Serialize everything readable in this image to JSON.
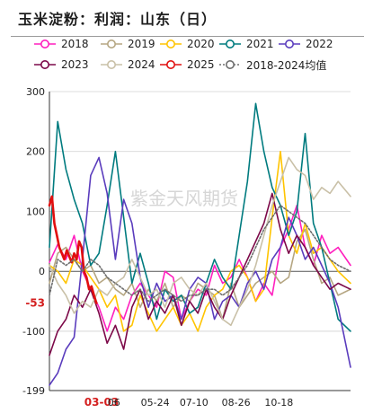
{
  "title": "玉米淀粉：利润：山东（日）",
  "watermark": "紫金天风期货",
  "chart_data": {
    "type": "line",
    "y_ticks": [
      300,
      200,
      100,
      0,
      -100,
      -199
    ],
    "ylim": [
      -199,
      300
    ],
    "x_ticks": [
      "06",
      "05-24",
      "07-10",
      "08-26",
      "10-18"
    ],
    "x_highlight": "03-03",
    "latest_value_label": "-53",
    "latest_value": -53,
    "x_range": [
      0,
      365
    ],
    "grid": true,
    "legend_position": "top",
    "series": [
      {
        "name": "2018",
        "color": "#ff1fbe",
        "marker": "circle",
        "points": [
          [
            0,
            15
          ],
          [
            10,
            45
          ],
          [
            20,
            20
          ],
          [
            30,
            60
          ],
          [
            40,
            0
          ],
          [
            50,
            -30
          ],
          [
            60,
            -60
          ],
          [
            70,
            -100
          ],
          [
            80,
            -60
          ],
          [
            90,
            -80
          ],
          [
            100,
            -40
          ],
          [
            110,
            -20
          ],
          [
            120,
            -40
          ],
          [
            130,
            -60
          ],
          [
            140,
            0
          ],
          [
            150,
            -10
          ],
          [
            160,
            -80
          ],
          [
            170,
            -50
          ],
          [
            180,
            -30
          ],
          [
            190,
            -40
          ],
          [
            200,
            10
          ],
          [
            210,
            -20
          ],
          [
            220,
            -10
          ],
          [
            230,
            20
          ],
          [
            240,
            -10
          ],
          [
            250,
            -50
          ],
          [
            260,
            -20
          ],
          [
            270,
            -40
          ],
          [
            280,
            40
          ],
          [
            290,
            70
          ],
          [
            300,
            110
          ],
          [
            310,
            40
          ],
          [
            320,
            10
          ],
          [
            330,
            60
          ],
          [
            340,
            30
          ],
          [
            350,
            40
          ],
          [
            365,
            10
          ]
        ]
      },
      {
        "name": "2019",
        "color": "#b5a682",
        "marker": "circle",
        "points": [
          [
            0,
            -20
          ],
          [
            10,
            30
          ],
          [
            20,
            40
          ],
          [
            30,
            20
          ],
          [
            40,
            0
          ],
          [
            50,
            10
          ],
          [
            60,
            -20
          ],
          [
            70,
            -10
          ],
          [
            80,
            -30
          ],
          [
            90,
            -40
          ],
          [
            100,
            -20
          ],
          [
            110,
            -60
          ],
          [
            120,
            -30
          ],
          [
            130,
            -50
          ],
          [
            140,
            -20
          ],
          [
            150,
            -60
          ],
          [
            160,
            -40
          ],
          [
            170,
            -50
          ],
          [
            180,
            -20
          ],
          [
            190,
            -30
          ],
          [
            200,
            -40
          ],
          [
            210,
            -80
          ],
          [
            220,
            -20
          ],
          [
            230,
            -60
          ],
          [
            240,
            -40
          ],
          [
            250,
            -20
          ],
          [
            260,
            -10
          ],
          [
            270,
            0
          ],
          [
            280,
            -20
          ],
          [
            290,
            -10
          ],
          [
            300,
            50
          ],
          [
            310,
            70
          ],
          [
            320,
            20
          ],
          [
            330,
            -20
          ],
          [
            340,
            -10
          ],
          [
            350,
            -40
          ],
          [
            365,
            -30
          ]
        ]
      },
      {
        "name": "2020",
        "color": "#ffc400",
        "marker": "circle",
        "points": [
          [
            0,
            10
          ],
          [
            10,
            0
          ],
          [
            20,
            -20
          ],
          [
            30,
            20
          ],
          [
            40,
            10
          ],
          [
            50,
            -10
          ],
          [
            60,
            -30
          ],
          [
            70,
            -60
          ],
          [
            80,
            -40
          ],
          [
            90,
            -100
          ],
          [
            100,
            -90
          ],
          [
            110,
            -40
          ],
          [
            120,
            -70
          ],
          [
            130,
            -100
          ],
          [
            140,
            -80
          ],
          [
            150,
            -60
          ],
          [
            160,
            -90
          ],
          [
            170,
            -70
          ],
          [
            180,
            -100
          ],
          [
            190,
            -60
          ],
          [
            200,
            -40
          ],
          [
            210,
            -30
          ],
          [
            220,
            0
          ],
          [
            230,
            10
          ],
          [
            240,
            -10
          ],
          [
            250,
            -50
          ],
          [
            260,
            -30
          ],
          [
            270,
            90
          ],
          [
            280,
            200
          ],
          [
            290,
            60
          ],
          [
            300,
            30
          ],
          [
            310,
            80
          ],
          [
            320,
            30
          ],
          [
            330,
            40
          ],
          [
            340,
            20
          ],
          [
            350,
            0
          ],
          [
            365,
            -20
          ]
        ]
      },
      {
        "name": "2021",
        "color": "#007b7f",
        "marker": "circle",
        "points": [
          [
            0,
            40
          ],
          [
            10,
            250
          ],
          [
            20,
            170
          ],
          [
            30,
            120
          ],
          [
            40,
            80
          ],
          [
            50,
            10
          ],
          [
            60,
            30
          ],
          [
            70,
            110
          ],
          [
            80,
            200
          ],
          [
            90,
            90
          ],
          [
            100,
            -20
          ],
          [
            110,
            30
          ],
          [
            120,
            -20
          ],
          [
            130,
            -80
          ],
          [
            140,
            -30
          ],
          [
            150,
            -50
          ],
          [
            160,
            -40
          ],
          [
            170,
            -70
          ],
          [
            180,
            -60
          ],
          [
            190,
            -20
          ],
          [
            200,
            20
          ],
          [
            210,
            -10
          ],
          [
            220,
            -30
          ],
          [
            230,
            60
          ],
          [
            240,
            150
          ],
          [
            250,
            280
          ],
          [
            260,
            200
          ],
          [
            270,
            140
          ],
          [
            280,
            110
          ],
          [
            290,
            60
          ],
          [
            300,
            100
          ],
          [
            310,
            230
          ],
          [
            320,
            80
          ],
          [
            330,
            40
          ],
          [
            340,
            -20
          ],
          [
            350,
            -80
          ],
          [
            365,
            -100
          ]
        ]
      },
      {
        "name": "2022",
        "color": "#5a3cbd",
        "marker": "circle",
        "points": [
          [
            0,
            -190
          ],
          [
            10,
            -170
          ],
          [
            20,
            -130
          ],
          [
            30,
            -110
          ],
          [
            40,
            20
          ],
          [
            50,
            160
          ],
          [
            60,
            190
          ],
          [
            70,
            130
          ],
          [
            80,
            20
          ],
          [
            90,
            120
          ],
          [
            100,
            80
          ],
          [
            110,
            -10
          ],
          [
            120,
            -60
          ],
          [
            130,
            -20
          ],
          [
            140,
            -50
          ],
          [
            150,
            -40
          ],
          [
            160,
            -80
          ],
          [
            170,
            -30
          ],
          [
            180,
            -10
          ],
          [
            190,
            -20
          ],
          [
            200,
            -80
          ],
          [
            210,
            -50
          ],
          [
            220,
            -40
          ],
          [
            230,
            -60
          ],
          [
            240,
            -20
          ],
          [
            250,
            0
          ],
          [
            260,
            -30
          ],
          [
            270,
            20
          ],
          [
            280,
            40
          ],
          [
            290,
            90
          ],
          [
            300,
            60
          ],
          [
            310,
            20
          ],
          [
            320,
            40
          ],
          [
            330,
            10
          ],
          [
            340,
            -20
          ],
          [
            350,
            -60
          ],
          [
            365,
            -160
          ]
        ]
      },
      {
        "name": "2023",
        "color": "#7c0848",
        "marker": "circle",
        "points": [
          [
            0,
            -140
          ],
          [
            10,
            -100
          ],
          [
            20,
            -80
          ],
          [
            30,
            -40
          ],
          [
            40,
            -60
          ],
          [
            50,
            -30
          ],
          [
            60,
            -70
          ],
          [
            70,
            -120
          ],
          [
            80,
            -90
          ],
          [
            90,
            -130
          ],
          [
            100,
            -60
          ],
          [
            110,
            -30
          ],
          [
            120,
            -80
          ],
          [
            130,
            -50
          ],
          [
            140,
            -70
          ],
          [
            150,
            -40
          ],
          [
            160,
            -90
          ],
          [
            170,
            -50
          ],
          [
            180,
            -70
          ],
          [
            190,
            -30
          ],
          [
            200,
            -60
          ],
          [
            210,
            -80
          ],
          [
            220,
            -40
          ],
          [
            230,
            -10
          ],
          [
            240,
            20
          ],
          [
            250,
            50
          ],
          [
            260,
            80
          ],
          [
            270,
            130
          ],
          [
            280,
            70
          ],
          [
            290,
            30
          ],
          [
            300,
            60
          ],
          [
            310,
            40
          ],
          [
            320,
            10
          ],
          [
            330,
            -10
          ],
          [
            340,
            -30
          ],
          [
            350,
            -20
          ],
          [
            365,
            -30
          ]
        ]
      },
      {
        "name": "2024",
        "color": "#c9c0a7",
        "marker": "circle",
        "points": [
          [
            0,
            10
          ],
          [
            10,
            -20
          ],
          [
            20,
            -40
          ],
          [
            30,
            -70
          ],
          [
            40,
            -50
          ],
          [
            50,
            -60
          ],
          [
            60,
            -30
          ],
          [
            70,
            -40
          ],
          [
            80,
            -20
          ],
          [
            90,
            -10
          ],
          [
            100,
            20
          ],
          [
            110,
            -10
          ],
          [
            120,
            -40
          ],
          [
            130,
            -30
          ],
          [
            140,
            -60
          ],
          [
            150,
            -20
          ],
          [
            160,
            -10
          ],
          [
            170,
            -30
          ],
          [
            180,
            -40
          ],
          [
            190,
            -20
          ],
          [
            200,
            -50
          ],
          [
            210,
            -80
          ],
          [
            220,
            -90
          ],
          [
            230,
            -60
          ],
          [
            240,
            -30
          ],
          [
            250,
            10
          ],
          [
            260,
            60
          ],
          [
            270,
            110
          ],
          [
            280,
            150
          ],
          [
            290,
            190
          ],
          [
            300,
            170
          ],
          [
            310,
            160
          ],
          [
            320,
            120
          ],
          [
            330,
            140
          ],
          [
            340,
            130
          ],
          [
            350,
            150
          ],
          [
            365,
            125
          ]
        ]
      },
      {
        "name": "2025",
        "color": "#e10f0f",
        "marker": "circle",
        "points": [
          [
            0,
            110
          ],
          [
            3,
            125
          ],
          [
            6,
            80
          ],
          [
            9,
            60
          ],
          [
            12,
            40
          ],
          [
            15,
            30
          ],
          [
            18,
            20
          ],
          [
            21,
            35
          ],
          [
            24,
            25
          ],
          [
            27,
            15
          ],
          [
            30,
            30
          ],
          [
            33,
            20
          ],
          [
            36,
            50
          ],
          [
            39,
            40
          ],
          [
            42,
            0
          ],
          [
            45,
            -10
          ],
          [
            48,
            -30
          ],
          [
            51,
            -25
          ],
          [
            54,
            -40
          ],
          [
            57,
            -53
          ]
        ]
      },
      {
        "name": "2018-2024均值",
        "color": "#6e6e6e",
        "marker": "circle",
        "dashed": true,
        "points": [
          [
            0,
            -40
          ],
          [
            10,
            20
          ],
          [
            20,
            10
          ],
          [
            30,
            20
          ],
          [
            40,
            0
          ],
          [
            50,
            20
          ],
          [
            60,
            10
          ],
          [
            70,
            -10
          ],
          [
            80,
            -20
          ],
          [
            90,
            -30
          ],
          [
            100,
            -40
          ],
          [
            110,
            -30
          ],
          [
            120,
            -50
          ],
          [
            130,
            -40
          ],
          [
            140,
            -30
          ],
          [
            150,
            -40
          ],
          [
            160,
            -50
          ],
          [
            170,
            -40
          ],
          [
            180,
            -40
          ],
          [
            190,
            -30
          ],
          [
            200,
            -30
          ],
          [
            210,
            -40
          ],
          [
            220,
            -30
          ],
          [
            230,
            -10
          ],
          [
            240,
            10
          ],
          [
            250,
            40
          ],
          [
            260,
            70
          ],
          [
            270,
            90
          ],
          [
            280,
            110
          ],
          [
            290,
            100
          ],
          [
            300,
            90
          ],
          [
            310,
            80
          ],
          [
            320,
            60
          ],
          [
            330,
            40
          ],
          [
            340,
            20
          ],
          [
            350,
            10
          ],
          [
            365,
            0
          ]
        ]
      }
    ]
  }
}
